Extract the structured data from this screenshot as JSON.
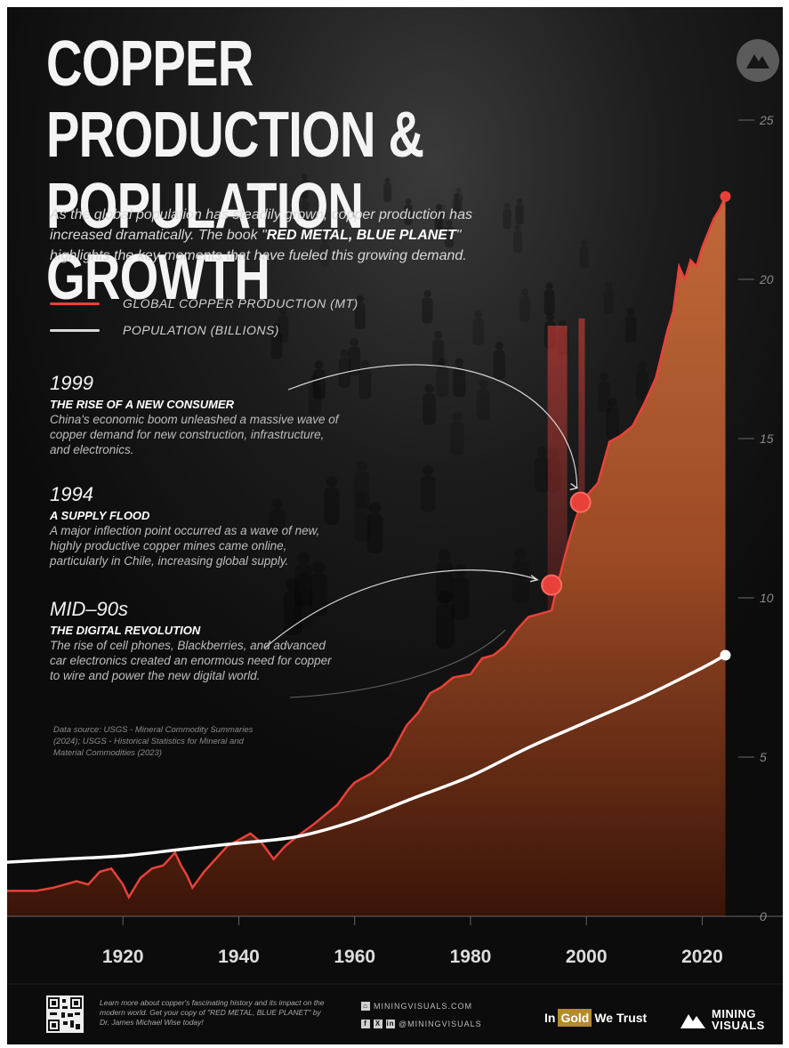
{
  "title_line1": "COPPER PRODUCTION &",
  "title_line2": "POPULATION GROWTH",
  "intro_before": "As the global population has steadily grown, copper production has increased dramatically. The book \"",
  "intro_book": "RED METAL, BLUE PLANET",
  "intro_after": "\" highlights the key moments that have fueled this growing demand.",
  "legend": {
    "copper": "GLOBAL COPPER PRODUCTION (MT)",
    "population": "POPULATION (BILLIONS)"
  },
  "events": [
    {
      "year": "1999",
      "heading": "THE RISE OF A NEW CONSUMER",
      "body": "China's economic boom unleashed a massive wave of copper demand for new construction, infrastructure, and electronics."
    },
    {
      "year": "1994",
      "heading": "A SUPPLY FLOOD",
      "body": "A major inflection point occurred as a wave of new, highly productive copper mines came online, particularly in Chile, increasing global supply."
    },
    {
      "year": "MID–90s",
      "heading": "THE DIGITAL REVOLUTION",
      "body": "The rise of cell phones, Blackberries, and advanced car electronics created an enormous need for copper to wire and power the new digital world."
    }
  ],
  "source": "Data source: USGS - Mineral Commodity Summaries (2024); USGS - Historical Statistics for Mineral and Material Commodities (2023)",
  "footer": {
    "promo": "Learn more about copper's fascinating history and its impact on the modern world. Get your copy of \"RED METAL, BLUE PLANET\" by Dr. James Michael Wise today!",
    "website": "MININGVISUALS.COM",
    "handle": "@MININGVISUALS",
    "sponsor_in": "In",
    "sponsor_gold": "Gold",
    "sponsor_trust": "We Trust",
    "brand_line1": "MINING",
    "brand_line2": "VISUALS"
  },
  "colors": {
    "copper": "#e8413a",
    "population": "#ffffff",
    "background": "#0c0c0c",
    "fill": "#b8582c"
  },
  "chart_data": {
    "type": "area",
    "title": "COPPER PRODUCTION & POPULATION GROWTH",
    "xlabel": "",
    "ylabel": "",
    "xlim": [
      1900,
      2025
    ],
    "ylim": [
      0,
      25
    ],
    "x_ticks": [
      1920,
      1940,
      1960,
      1980,
      2000,
      2020
    ],
    "y_ticks": [
      0,
      5,
      10,
      15,
      20,
      25
    ],
    "grid": false,
    "legend_position": "top-left",
    "series": [
      {
        "name": "GLOBAL COPPER PRODUCTION (MT)",
        "x": [
          1900,
          1905,
          1908,
          1910,
          1912,
          1914,
          1916,
          1918,
          1920,
          1921,
          1923,
          1925,
          1927,
          1929,
          1930,
          1931,
          1932,
          1934,
          1937,
          1938,
          1940,
          1942,
          1944,
          1946,
          1948,
          1950,
          1953,
          1955,
          1957,
          1959,
          1960,
          1963,
          1966,
          1969,
          1971,
          1973,
          1975,
          1977,
          1980,
          1982,
          1984,
          1986,
          1988,
          1990,
          1992,
          1994,
          1995,
          1996,
          1997,
          1998,
          1999,
          2000,
          2002,
          2004,
          2006,
          2008,
          2010,
          2012,
          2014,
          2015,
          2016,
          2017,
          2018,
          2019,
          2020,
          2022,
          2023,
          2024
        ],
        "values": [
          0.8,
          0.8,
          0.9,
          1.0,
          1.1,
          1.0,
          1.4,
          1.5,
          1.0,
          0.6,
          1.2,
          1.5,
          1.6,
          2.0,
          1.6,
          1.3,
          0.9,
          1.4,
          2.0,
          2.2,
          2.4,
          2.6,
          2.3,
          1.8,
          2.2,
          2.5,
          2.9,
          3.2,
          3.5,
          4.0,
          4.2,
          4.5,
          5.0,
          6.0,
          6.4,
          7.0,
          7.2,
          7.5,
          7.6,
          8.1,
          8.2,
          8.5,
          9.0,
          9.4,
          9.5,
          9.6,
          10.4,
          11.1,
          11.8,
          12.4,
          12.9,
          13.2,
          13.6,
          14.9,
          15.1,
          15.4,
          16.1,
          16.9,
          18.4,
          19.0,
          20.4,
          20.0,
          20.6,
          20.4,
          21.0,
          21.9,
          22.2,
          22.6
        ]
      },
      {
        "name": "POPULATION (BILLIONS)",
        "x": [
          1900,
          1910,
          1920,
          1930,
          1940,
          1950,
          1960,
          1970,
          1980,
          1990,
          2000,
          2010,
          2020,
          2024
        ],
        "values": [
          1.7,
          1.8,
          1.9,
          2.1,
          2.3,
          2.5,
          3.0,
          3.7,
          4.4,
          5.3,
          6.1,
          6.9,
          7.8,
          8.2
        ]
      }
    ],
    "annotations": [
      {
        "year": 1994,
        "value": 10.4,
        "label": "1994"
      },
      {
        "year": 1999,
        "value": 13.0,
        "label": "1999"
      },
      {
        "year": 2024,
        "value": 22.6,
        "label": "copper endpoint"
      },
      {
        "year": 2024,
        "value": 8.2,
        "label": "population endpoint"
      }
    ]
  }
}
